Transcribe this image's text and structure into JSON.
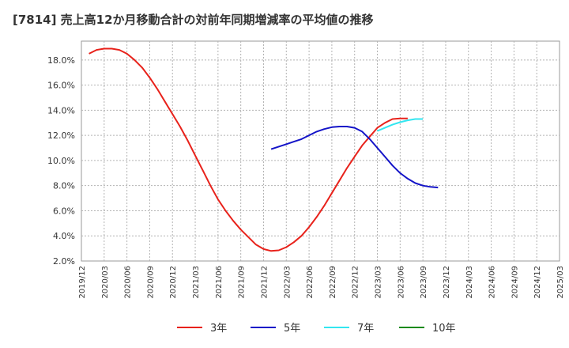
{
  "chart_data": {
    "type": "line",
    "title": "[7814]  売上高12か月移動合計の対前年同期増減率の平均値の推移",
    "xlabel": "",
    "ylabel": "",
    "ylim": [
      2.0,
      19.5
    ],
    "y_ticks": [
      "2.0%",
      "4.0%",
      "6.0%",
      "8.0%",
      "10.0%",
      "12.0%",
      "14.0%",
      "16.0%",
      "18.0%"
    ],
    "x_ticks": [
      "2019/12",
      "2020/03",
      "2020/06",
      "2020/09",
      "2020/12",
      "2021/03",
      "2021/06",
      "2021/09",
      "2021/12",
      "2022/03",
      "2022/06",
      "2022/09",
      "2022/12",
      "2023/03",
      "2023/06",
      "2023/09",
      "2023/12",
      "2024/03",
      "2024/06",
      "2024/09",
      "2024/12",
      "2025/03"
    ],
    "grid": true,
    "legend_position": "bottom",
    "series": [
      {
        "name": "3年",
        "color": "#e8221b",
        "start_index": 1,
        "values": [
          18.5,
          18.8,
          18.9,
          18.9,
          18.8,
          18.5,
          18.0,
          17.4,
          16.6,
          15.7,
          14.7,
          13.7,
          12.7,
          11.6,
          10.4,
          9.2,
          8.0,
          6.9,
          6.0,
          5.2,
          4.5,
          3.9,
          3.3,
          2.95,
          2.8,
          2.85,
          3.1,
          3.5,
          4.0,
          4.7,
          5.5,
          6.4,
          7.4,
          8.4,
          9.4,
          10.3,
          11.2,
          11.9,
          12.6,
          13.0,
          13.3,
          13.35,
          13.35
        ]
      },
      {
        "name": "5年",
        "color": "#1414c8",
        "start_index": 25,
        "values": [
          10.9,
          11.1,
          11.3,
          11.5,
          11.7,
          12.0,
          12.3,
          12.5,
          12.65,
          12.7,
          12.7,
          12.6,
          12.3,
          11.7,
          11.0,
          10.3,
          9.6,
          9.0,
          8.55,
          8.2,
          8.0,
          7.9,
          7.85
        ]
      },
      {
        "name": "7年",
        "color": "#33e6f0",
        "start_index": 39,
        "values": [
          12.35,
          12.6,
          12.85,
          13.05,
          13.2,
          13.3,
          13.3
        ]
      },
      {
        "name": "10年",
        "color": "#1a8a1a",
        "start_index": 0,
        "values": []
      }
    ]
  }
}
